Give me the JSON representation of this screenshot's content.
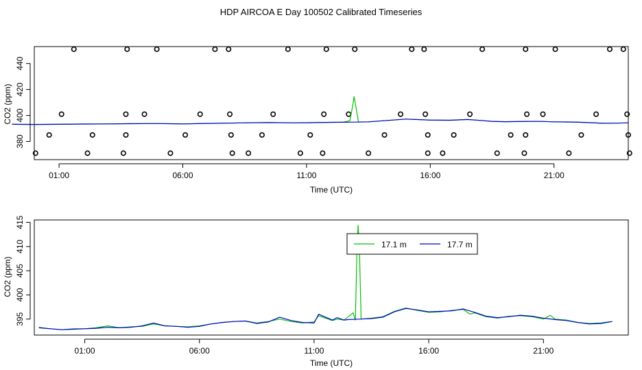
{
  "figure_title": "HDP AIRCOA E  Day 100502  Calibrated Timeseries",
  "colors": {
    "series_17_1": "#00c000",
    "series_17_7": "#0000cc",
    "axes": "#000000",
    "markers": "#000000"
  },
  "chart_data": [
    {
      "type": "scatter",
      "xlabel": "Time (UTC)",
      "ylabel": "CO2 (ppm)",
      "xlim": [
        0,
        24
      ],
      "ylim": [
        366,
        453
      ],
      "x_ticks": [
        1,
        6,
        11,
        16,
        21
      ],
      "x_tick_labels": [
        "01:00",
        "06:00",
        "11:00",
        "16:00",
        "21:00"
      ],
      "y_ticks": [
        380,
        400,
        420,
        440
      ],
      "y_tick_labels": [
        "380",
        "400",
        "420",
        "440"
      ],
      "grid": false,
      "marker_points": [
        [
          1.1,
          401
        ],
        [
          3.7,
          401
        ],
        [
          4.45,
          401
        ],
        [
          6.7,
          401
        ],
        [
          7.9,
          401
        ],
        [
          9.65,
          401
        ],
        [
          11.7,
          401
        ],
        [
          12.7,
          401
        ],
        [
          14.8,
          401
        ],
        [
          15.8,
          401
        ],
        [
          17.6,
          401
        ],
        [
          19.9,
          401
        ],
        [
          20.55,
          401
        ],
        [
          22.7,
          401
        ],
        [
          23.95,
          401
        ],
        [
          0.05,
          371
        ],
        [
          2.15,
          371
        ],
        [
          3.6,
          371
        ],
        [
          5.5,
          371
        ],
        [
          8.0,
          371
        ],
        [
          8.65,
          371
        ],
        [
          10.75,
          371
        ],
        [
          11.65,
          371
        ],
        [
          13.5,
          371
        ],
        [
          15.9,
          371
        ],
        [
          16.5,
          371
        ],
        [
          18.7,
          371
        ],
        [
          19.8,
          371
        ],
        [
          21.6,
          371
        ],
        [
          24.05,
          371
        ],
        [
          1.6,
          451
        ],
        [
          3.75,
          451
        ],
        [
          4.95,
          451
        ],
        [
          7.3,
          451
        ],
        [
          7.85,
          451
        ],
        [
          10.25,
          451
        ],
        [
          11.8,
          451
        ],
        [
          12.95,
          451
        ],
        [
          15.25,
          451
        ],
        [
          15.75,
          451
        ],
        [
          18.1,
          451
        ],
        [
          19.85,
          451
        ],
        [
          21.05,
          451
        ],
        [
          23.25,
          451
        ],
        [
          23.8,
          451
        ],
        [
          0.6,
          385
        ],
        [
          2.35,
          385
        ],
        [
          3.7,
          385
        ],
        [
          6.1,
          385
        ],
        [
          7.95,
          385
        ],
        [
          9.2,
          385
        ],
        [
          11.15,
          385
        ],
        [
          14.15,
          385
        ],
        [
          15.9,
          385
        ],
        [
          16.95,
          385
        ],
        [
          19.25,
          385
        ],
        [
          19.85,
          385
        ],
        [
          22.1,
          385
        ],
        [
          24.0,
          385
        ]
      ],
      "series": [
        {
          "points": [
            [
              -0.9,
              393.2
            ],
            [
              0,
              393.1
            ],
            [
              1,
              393.2
            ],
            [
              2,
              393.4
            ],
            [
              3,
              393.5
            ],
            [
              3.8,
              393.7
            ],
            [
              5,
              393.8
            ],
            [
              6,
              393.5
            ],
            [
              7,
              393.9
            ],
            [
              8.5,
              394.3
            ],
            [
              9.5,
              394.5
            ],
            [
              10.5,
              394.3
            ],
            [
              11,
              394.4
            ],
            [
              11.8,
              394.7
            ],
            [
              12.5,
              394.9
            ],
            [
              12.75,
              396
            ],
            [
              12.87,
              408
            ],
            [
              12.92,
              414.5
            ],
            [
              12.98,
              408
            ],
            [
              13.1,
              395
            ],
            [
              13.5,
              395.1
            ],
            [
              14.5,
              396.5
            ],
            [
              15,
              397.2
            ],
            [
              15.6,
              396.8
            ],
            [
              16,
              396.4
            ],
            [
              16.8,
              396.3
            ],
            [
              17.5,
              396.9
            ],
            [
              18,
              396.2
            ],
            [
              18.5,
              395.5
            ],
            [
              19,
              395.2
            ],
            [
              19.5,
              395.3
            ],
            [
              20,
              395.5
            ],
            [
              20.5,
              395.4
            ],
            [
              21,
              395.1
            ],
            [
              21.5,
              395
            ],
            [
              22,
              394.8
            ],
            [
              22.5,
              394.4
            ],
            [
              23,
              394
            ],
            [
              23.5,
              394.1
            ],
            [
              24,
              394.3
            ]
          ]
        },
        {
          "points": [
            [
              -0.9,
              393.2
            ],
            [
              0,
              393.1
            ],
            [
              1,
              393.2
            ],
            [
              2,
              393.4
            ],
            [
              3,
              393.5
            ],
            [
              3.8,
              393.7
            ],
            [
              5,
              393.8
            ],
            [
              6,
              393.5
            ],
            [
              7,
              393.9
            ],
            [
              8.5,
              394.3
            ],
            [
              9.5,
              394.5
            ],
            [
              10.5,
              394.3
            ],
            [
              11,
              394.4
            ],
            [
              11.8,
              394.7
            ],
            [
              12.5,
              394.8
            ],
            [
              13,
              394.9
            ],
            [
              13.5,
              395.1
            ],
            [
              14.5,
              396.5
            ],
            [
              15,
              397.2
            ],
            [
              15.6,
              396.8
            ],
            [
              16,
              396.4
            ],
            [
              16.8,
              396.3
            ],
            [
              17.5,
              396.9
            ],
            [
              18,
              396.2
            ],
            [
              18.5,
              395.5
            ],
            [
              19,
              395.2
            ],
            [
              19.5,
              395.3
            ],
            [
              20,
              395.5
            ],
            [
              20.5,
              395.4
            ],
            [
              21,
              395.1
            ],
            [
              21.5,
              395
            ],
            [
              22,
              394.8
            ],
            [
              22.5,
              394.4
            ],
            [
              23,
              394
            ],
            [
              23.5,
              394.1
            ],
            [
              24,
              394.3
            ]
          ]
        }
      ]
    },
    {
      "type": "line",
      "xlabel": "Time (UTC)",
      "ylabel": "CO2 (ppm)",
      "xlim": [
        -1.2,
        24.7
      ],
      "ylim": [
        391.7,
        415.5
      ],
      "x_ticks": [
        1,
        6,
        11,
        16,
        21
      ],
      "x_tick_labels": [
        "01:00",
        "06:00",
        "11:00",
        "16:00",
        "21:00"
      ],
      "y_ticks": [
        395,
        400,
        405,
        410,
        415
      ],
      "y_tick_labels": [
        "395",
        "400",
        "405",
        "410",
        "415"
      ],
      "grid": false,
      "legend_position": "top-center",
      "series": [
        {
          "name": "17.1 m",
          "points": [
            [
              -1,
              393.3
            ],
            [
              -0.5,
              393
            ],
            [
              0,
              392.8
            ],
            [
              0.5,
              393
            ],
            [
              1,
              393
            ],
            [
              1.5,
              393.2
            ],
            [
              2,
              393.6
            ],
            [
              2.5,
              393.2
            ],
            [
              3,
              393.4
            ],
            [
              3.5,
              393.5
            ],
            [
              4,
              394
            ],
            [
              4.5,
              393.6
            ],
            [
              5,
              393.5
            ],
            [
              5.5,
              393.4
            ],
            [
              6,
              393.6
            ],
            [
              6.5,
              394
            ],
            [
              7,
              394.3
            ],
            [
              7.5,
              394.5
            ],
            [
              8,
              394.6
            ],
            [
              8.5,
              394.2
            ],
            [
              9,
              394.5
            ],
            [
              9.5,
              395
            ],
            [
              10,
              394.5
            ],
            [
              10.5,
              394.2
            ],
            [
              11,
              394.4
            ],
            [
              11.2,
              395.7
            ],
            [
              11.5,
              395.2
            ],
            [
              11.8,
              394.7
            ],
            [
              12,
              395
            ],
            [
              12.3,
              394.8
            ],
            [
              12.5,
              395.5
            ],
            [
              12.7,
              396.3
            ],
            [
              12.8,
              394.8
            ],
            [
              12.87,
              409
            ],
            [
              12.92,
              414.4
            ],
            [
              12.98,
              409
            ],
            [
              13.05,
              395
            ],
            [
              13.5,
              395.2
            ],
            [
              14,
              395.5
            ],
            [
              14.5,
              396.6
            ],
            [
              15,
              397.3
            ],
            [
              15.5,
              396.8
            ],
            [
              16,
              396.4
            ],
            [
              16.5,
              396.5
            ],
            [
              17,
              396.8
            ],
            [
              17.5,
              397
            ],
            [
              17.8,
              396
            ],
            [
              18,
              396.3
            ],
            [
              18.5,
              395.5
            ],
            [
              19,
              395.2
            ],
            [
              19.5,
              395.6
            ],
            [
              20,
              395.7
            ],
            [
              20.5,
              395.5
            ],
            [
              21,
              395
            ],
            [
              21.3,
              395.8
            ],
            [
              21.5,
              395
            ],
            [
              22,
              394.8
            ],
            [
              22.5,
              394.3
            ],
            [
              23,
              394.1
            ],
            [
              23.5,
              394.2
            ],
            [
              24,
              394.5
            ]
          ]
        },
        {
          "name": "17.7 m",
          "points": [
            [
              -1,
              393.2
            ],
            [
              -0.5,
              393
            ],
            [
              0,
              392.8
            ],
            [
              0.5,
              392.9
            ],
            [
              1,
              393
            ],
            [
              1.5,
              393.1
            ],
            [
              2,
              393.3
            ],
            [
              2.5,
              393.2
            ],
            [
              3,
              393.3
            ],
            [
              3.5,
              393.6
            ],
            [
              4,
              394.2
            ],
            [
              4.5,
              393.6
            ],
            [
              5,
              393.5
            ],
            [
              5.5,
              393.3
            ],
            [
              6,
              393.5
            ],
            [
              6.5,
              394
            ],
            [
              7,
              394.3
            ],
            [
              7.5,
              394.5
            ],
            [
              8,
              394.6
            ],
            [
              8.5,
              394.1
            ],
            [
              9,
              394.4
            ],
            [
              9.5,
              395.4
            ],
            [
              10,
              394.7
            ],
            [
              10.5,
              394.3
            ],
            [
              11,
              394.2
            ],
            [
              11.2,
              396
            ],
            [
              11.5,
              395.4
            ],
            [
              11.8,
              394.8
            ],
            [
              12,
              395.3
            ],
            [
              12.3,
              394.8
            ],
            [
              12.5,
              394.9
            ],
            [
              13,
              395
            ],
            [
              13.5,
              395.1
            ],
            [
              14,
              395.4
            ],
            [
              14.5,
              396.5
            ],
            [
              15,
              397.2
            ],
            [
              15.5,
              396.9
            ],
            [
              16,
              396.5
            ],
            [
              16.5,
              396.6
            ],
            [
              17,
              396.7
            ],
            [
              17.5,
              397.1
            ],
            [
              18,
              396.4
            ],
            [
              18.5,
              395.6
            ],
            [
              19,
              395.3
            ],
            [
              19.5,
              395.5
            ],
            [
              20,
              395.8
            ],
            [
              20.5,
              395.6
            ],
            [
              21,
              395.2
            ],
            [
              21.5,
              394.9
            ],
            [
              22,
              394.7
            ],
            [
              22.5,
              394.3
            ],
            [
              23,
              394
            ],
            [
              23.5,
              394.1
            ],
            [
              24,
              394.5
            ]
          ]
        }
      ]
    }
  ]
}
